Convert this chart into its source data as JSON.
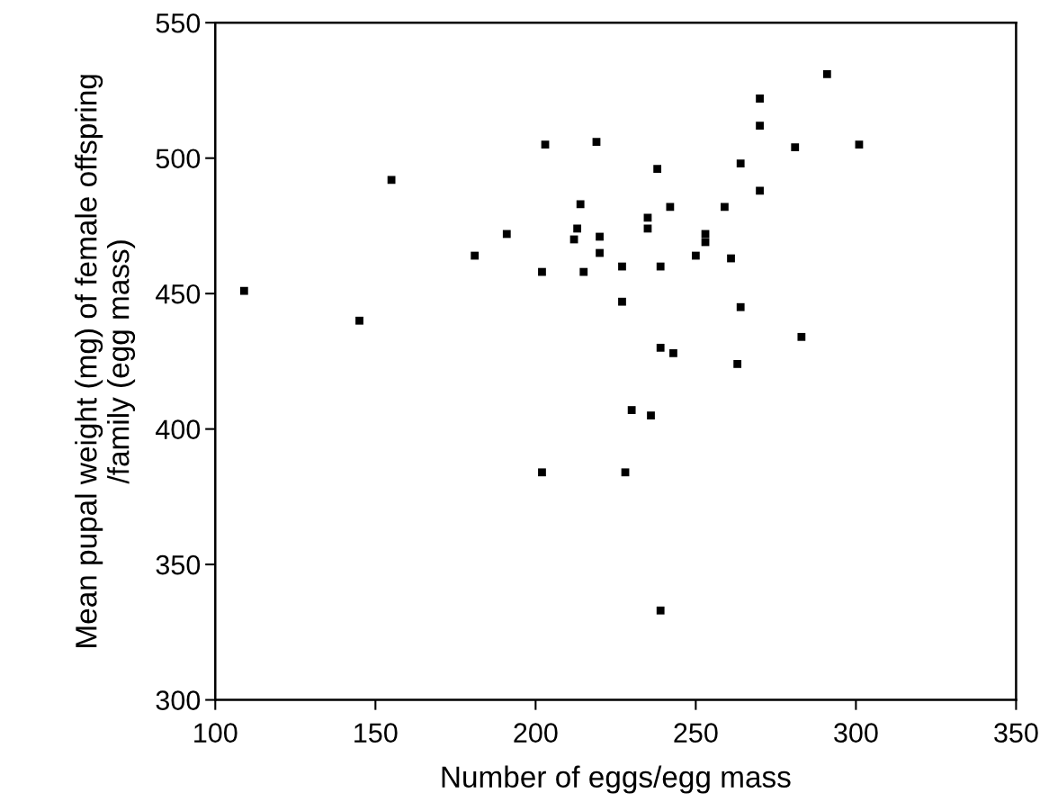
{
  "chart_data": {
    "type": "scatter",
    "xlabel": "Number of eggs/egg mass",
    "ylabel": "Mean pupal weight (mg) of female offspring\n/family (egg mass)",
    "xlim": [
      100,
      350
    ],
    "xticks": [
      100,
      150,
      200,
      250,
      300,
      350
    ],
    "ylim": [
      300,
      550
    ],
    "yticks": [
      300,
      350,
      400,
      450,
      500,
      550
    ],
    "grid": false,
    "marker": "square",
    "series": [
      {
        "color": "#000000",
        "x": [
          109,
          145,
          155,
          181,
          202,
          228,
          239,
          291,
          270,
          270,
          203,
          219,
          281,
          301,
          264,
          238,
          270,
          214,
          242,
          259,
          235,
          235,
          213,
          212,
          220,
          253,
          253,
          191,
          220,
          250,
          261,
          202,
          215,
          227,
          239,
          227,
          264,
          283,
          239,
          243,
          263,
          230,
          236
        ],
        "values": [
          451,
          440,
          492,
          464,
          384,
          384,
          333,
          531,
          522,
          512,
          505,
          506,
          504,
          505,
          498,
          496,
          488,
          483,
          482,
          482,
          478,
          474,
          474,
          470,
          471,
          472,
          469,
          472,
          465,
          464,
          463,
          458,
          458,
          460,
          460,
          447,
          445,
          434,
          430,
          428,
          424,
          407,
          405
        ]
      }
    ]
  }
}
